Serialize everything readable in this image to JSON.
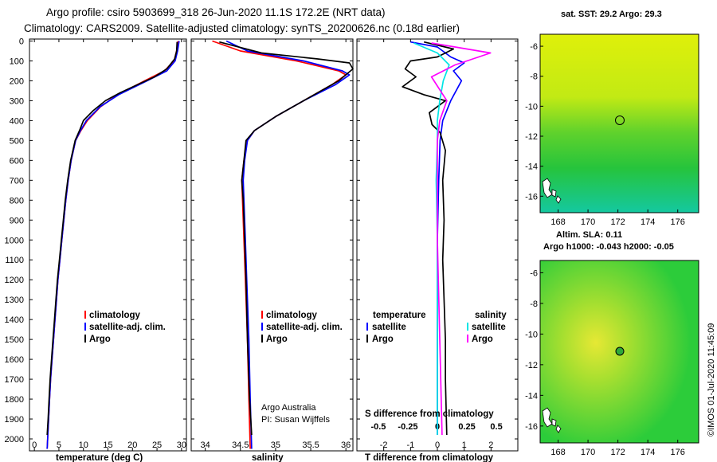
{
  "title_line1": "Argo profile: csiro 5903699_318 26-Jun-2020 11.1S 172.2E (NRT data)",
  "title_line2": "Climatology: CARS2009. Satellite-adjusted climatology: synTS_20200626.nc (0.18d earlier)",
  "colors": {
    "argo": "#000000",
    "climatology": "#ff0000",
    "satellite": "#0000ff",
    "sat_salinity": "#00e5e5",
    "argo_salinity": "#ff00ff",
    "sst_map": "#d8ef10",
    "sla_map": "#2ccc3a"
  },
  "depth_ticks": [
    "0",
    "100",
    "200",
    "300",
    "400",
    "500",
    "600",
    "700",
    "800",
    "900",
    "1000",
    "1100",
    "1200",
    "1300",
    "1400",
    "1500",
    "1600",
    "1700",
    "1800",
    "1900",
    "2000"
  ],
  "chart_data": [
    {
      "type": "line",
      "name": "temperature",
      "xlabel": "temperature (deg C)",
      "xlim": [
        -1,
        31
      ],
      "xticks": [
        0,
        5,
        10,
        15,
        20,
        25,
        30
      ],
      "ylim": [
        2060,
        -10
      ],
      "legend": [
        "climatology",
        "satellite-adj. clim.",
        "Argo"
      ],
      "series": [
        {
          "name": "climatology",
          "color": "#ff0000",
          "points": [
            [
              29.3,
              0
            ],
            [
              29,
              50
            ],
            [
              28.5,
              100
            ],
            [
              26.5,
              150
            ],
            [
              22.5,
              200
            ],
            [
              17,
              270
            ],
            [
              13.5,
              330
            ],
            [
              10.8,
              400
            ],
            [
              9.5,
              450
            ],
            [
              8.4,
              500
            ],
            [
              7.5,
              600
            ],
            [
              6.9,
              700
            ],
            [
              6.4,
              800
            ],
            [
              6,
              900
            ],
            [
              5.6,
              1000
            ],
            [
              5.2,
              1100
            ],
            [
              4.8,
              1200
            ],
            [
              4.5,
              1300
            ],
            [
              4.2,
              1400
            ],
            [
              3.9,
              1500
            ],
            [
              3.6,
              1600
            ],
            [
              3.3,
              1700
            ],
            [
              3.1,
              1800
            ],
            [
              2.9,
              1900
            ],
            [
              2.7,
              2000
            ],
            [
              2.6,
              2050
            ]
          ]
        },
        {
          "name": "satellite-adj. clim.",
          "color": "#0000ff",
          "points": [
            [
              29.5,
              0
            ],
            [
              29.2,
              50
            ],
            [
              28.7,
              100
            ],
            [
              27,
              150
            ],
            [
              23,
              200
            ],
            [
              17.2,
              270
            ],
            [
              13.4,
              330
            ],
            [
              10.6,
              400
            ],
            [
              9.4,
              450
            ],
            [
              8.4,
              500
            ],
            [
              7.5,
              600
            ],
            [
              6.9,
              700
            ],
            [
              6.4,
              800
            ],
            [
              6,
              900
            ],
            [
              5.6,
              1000
            ],
            [
              5.2,
              1100
            ],
            [
              4.8,
              1200
            ],
            [
              4.5,
              1300
            ],
            [
              4.2,
              1400
            ],
            [
              3.9,
              1500
            ],
            [
              3.6,
              1600
            ],
            [
              3.3,
              1700
            ],
            [
              3.1,
              1800
            ],
            [
              2.9,
              1900
            ],
            [
              2.7,
              2000
            ],
            [
              2.6,
              2050
            ]
          ]
        },
        {
          "name": "Argo",
          "color": "#000000",
          "points": [
            [
              29.1,
              5
            ],
            [
              29,
              50
            ],
            [
              28.6,
              90
            ],
            [
              27,
              140
            ],
            [
              24.5,
              180
            ],
            [
              21,
              220
            ],
            [
              17.5,
              260
            ],
            [
              14.5,
              300
            ],
            [
              12,
              350
            ],
            [
              10,
              400
            ],
            [
              9.2,
              450
            ],
            [
              8.3,
              500
            ],
            [
              7.4,
              600
            ],
            [
              6.8,
              700
            ],
            [
              6.3,
              800
            ],
            [
              5.9,
              900
            ],
            [
              5.5,
              1000
            ],
            [
              5.1,
              1100
            ],
            [
              4.7,
              1200
            ],
            [
              4.4,
              1300
            ],
            [
              4.1,
              1400
            ],
            [
              3.8,
              1500
            ],
            [
              3.5,
              1600
            ],
            [
              3.2,
              1700
            ],
            [
              3,
              1800
            ],
            [
              2.8,
              1900
            ],
            [
              2.6,
              1980
            ]
          ]
        }
      ]
    },
    {
      "type": "line",
      "name": "salinity",
      "xlabel": "salinity",
      "xlim": [
        33.8,
        36.1
      ],
      "xticks": [
        "34",
        "34.5",
        "35",
        "35.5",
        "36"
      ],
      "ylim": [
        2060,
        -10
      ],
      "legend": [
        "climatology",
        "satellite-adj. clim.",
        "Argo"
      ],
      "series": [
        {
          "name": "climatology",
          "color": "#ff0000",
          "points": [
            [
              34.1,
              0
            ],
            [
              34.5,
              50
            ],
            [
              35.3,
              100
            ],
            [
              35.9,
              150
            ],
            [
              36,
              170
            ],
            [
              35.8,
              220
            ],
            [
              35.4,
              300
            ],
            [
              35,
              380
            ],
            [
              34.7,
              450
            ],
            [
              34.6,
              500
            ],
            [
              34.55,
              600
            ],
            [
              34.52,
              700
            ],
            [
              34.53,
              800
            ],
            [
              34.55,
              1000
            ],
            [
              34.57,
              1200
            ],
            [
              34.6,
              1500
            ],
            [
              34.62,
              1800
            ],
            [
              34.64,
              2050
            ]
          ]
        },
        {
          "name": "satellite-adj. clim.",
          "color": "#0000ff",
          "points": [
            [
              34.3,
              0
            ],
            [
              34.6,
              50
            ],
            [
              35.4,
              100
            ],
            [
              35.95,
              150
            ],
            [
              36.05,
              170
            ],
            [
              35.85,
              220
            ],
            [
              35.4,
              300
            ],
            [
              35,
              380
            ],
            [
              34.7,
              450
            ],
            [
              34.6,
              500
            ],
            [
              34.56,
              600
            ],
            [
              34.54,
              700
            ],
            [
              34.55,
              800
            ],
            [
              34.57,
              1000
            ],
            [
              34.59,
              1200
            ],
            [
              34.62,
              1500
            ],
            [
              34.64,
              1800
            ],
            [
              34.66,
              2050
            ]
          ]
        },
        {
          "name": "Argo",
          "color": "#000000",
          "points": [
            [
              34.2,
              5
            ],
            [
              34.8,
              60
            ],
            [
              35.6,
              90
            ],
            [
              36.05,
              110
            ],
            [
              36.1,
              140
            ],
            [
              35.9,
              200
            ],
            [
              35.4,
              300
            ],
            [
              35,
              380
            ],
            [
              34.7,
              450
            ],
            [
              34.58,
              500
            ],
            [
              34.55,
              600
            ],
            [
              34.52,
              700
            ],
            [
              34.54,
              800
            ],
            [
              34.56,
              1000
            ],
            [
              34.58,
              1200
            ],
            [
              34.6,
              1500
            ],
            [
              34.63,
              1800
            ],
            [
              34.66,
              1980
            ]
          ]
        }
      ]
    },
    {
      "type": "line",
      "name": "difference",
      "xlabel": "T difference from climatology",
      "xlabel2": "S difference from climatology",
      "xlim": [
        -3,
        3
      ],
      "xticks": [
        "-2",
        "-1",
        "0",
        "1",
        "2"
      ],
      "xticks_top": [
        "-0.5",
        "-0.25",
        "0",
        "0.25",
        "0.5"
      ],
      "ylim": [
        2060,
        -10
      ],
      "legend": {
        "temperature": [
          "satellite",
          "Argo"
        ],
        "salinity": [
          "satellite",
          "Argo"
        ],
        "temperature_head": "temperature",
        "salinity_head": "salinity"
      },
      "series": [
        {
          "name": "T satellite",
          "color": "#0000ff",
          "points": [
            [
              -1,
              5
            ],
            [
              0,
              30
            ],
            [
              0.5,
              80
            ],
            [
              1,
              110
            ],
            [
              0.6,
              150
            ],
            [
              0.9,
              200
            ],
            [
              0.5,
              300
            ],
            [
              0.2,
              400
            ],
            [
              0.1,
              500
            ],
            [
              0.05,
              700
            ],
            [
              0,
              1000
            ],
            [
              0,
              1500
            ],
            [
              0,
              1980
            ]
          ]
        },
        {
          "name": "T Argo",
          "color": "#000000",
          "points": [
            [
              -0.5,
              5
            ],
            [
              0.6,
              40
            ],
            [
              0,
              80
            ],
            [
              -1,
              100
            ],
            [
              -1.2,
              140
            ],
            [
              -0.8,
              180
            ],
            [
              -1.3,
              230
            ],
            [
              -0.5,
              270
            ],
            [
              0.3,
              300
            ],
            [
              -0.3,
              360
            ],
            [
              -0.2,
              420
            ],
            [
              0.1,
              460
            ],
            [
              0.3,
              550
            ],
            [
              0.2,
              700
            ],
            [
              0.25,
              900
            ],
            [
              0.2,
              1100
            ],
            [
              0.25,
              1300
            ],
            [
              0.3,
              1500
            ],
            [
              0.3,
              1700
            ],
            [
              0.35,
              1980
            ]
          ]
        },
        {
          "name": "S satellite",
          "color": "#00e5e5",
          "points": [
            [
              -0.2,
              10
            ],
            [
              0,
              60
            ],
            [
              0.1,
              120
            ],
            [
              0.05,
              200
            ],
            [
              0.02,
              300
            ],
            [
              0,
              400
            ],
            [
              0,
              500
            ],
            [
              -0.01,
              700
            ],
            [
              0,
              1000
            ],
            [
              0,
              1500
            ],
            [
              0,
              1980
            ]
          ]
        },
        {
          "name": "S Argo",
          "color": "#ff00ff",
          "points": [
            [
              -0.05,
              10
            ],
            [
              0.45,
              60
            ],
            [
              0.15,
              120
            ],
            [
              -0.05,
              180
            ],
            [
              0.08,
              300
            ],
            [
              0.02,
              400
            ],
            [
              0,
              500
            ],
            [
              0,
              700
            ],
            [
              0,
              1000
            ],
            [
              0.02,
              1500
            ],
            [
              0.04,
              1980
            ]
          ]
        }
      ]
    }
  ],
  "maps": [
    {
      "name": "sst-map",
      "title": "sat. SST: 29.2 Argo: 29.3",
      "xticks": [
        "168",
        "170",
        "172",
        "174",
        "176"
      ],
      "yticks": [
        "-6",
        "-8",
        "-10",
        "-12",
        "-14",
        "-16"
      ]
    },
    {
      "name": "sla-map",
      "title1": "Altim. SLA: 0.11",
      "title2": "Argo h1000: -0.043 h2000: -0.05",
      "xticks": [
        "168",
        "170",
        "172",
        "174",
        "176"
      ],
      "yticks": [
        "-6",
        "-8",
        "-10",
        "-12",
        "-14",
        "-16"
      ]
    }
  ],
  "annotations": {
    "agency": "Argo Australia",
    "pi": "PI: Susan Wijffels",
    "imos": "©IMOS 01-Jul-2020 11:45:09"
  }
}
